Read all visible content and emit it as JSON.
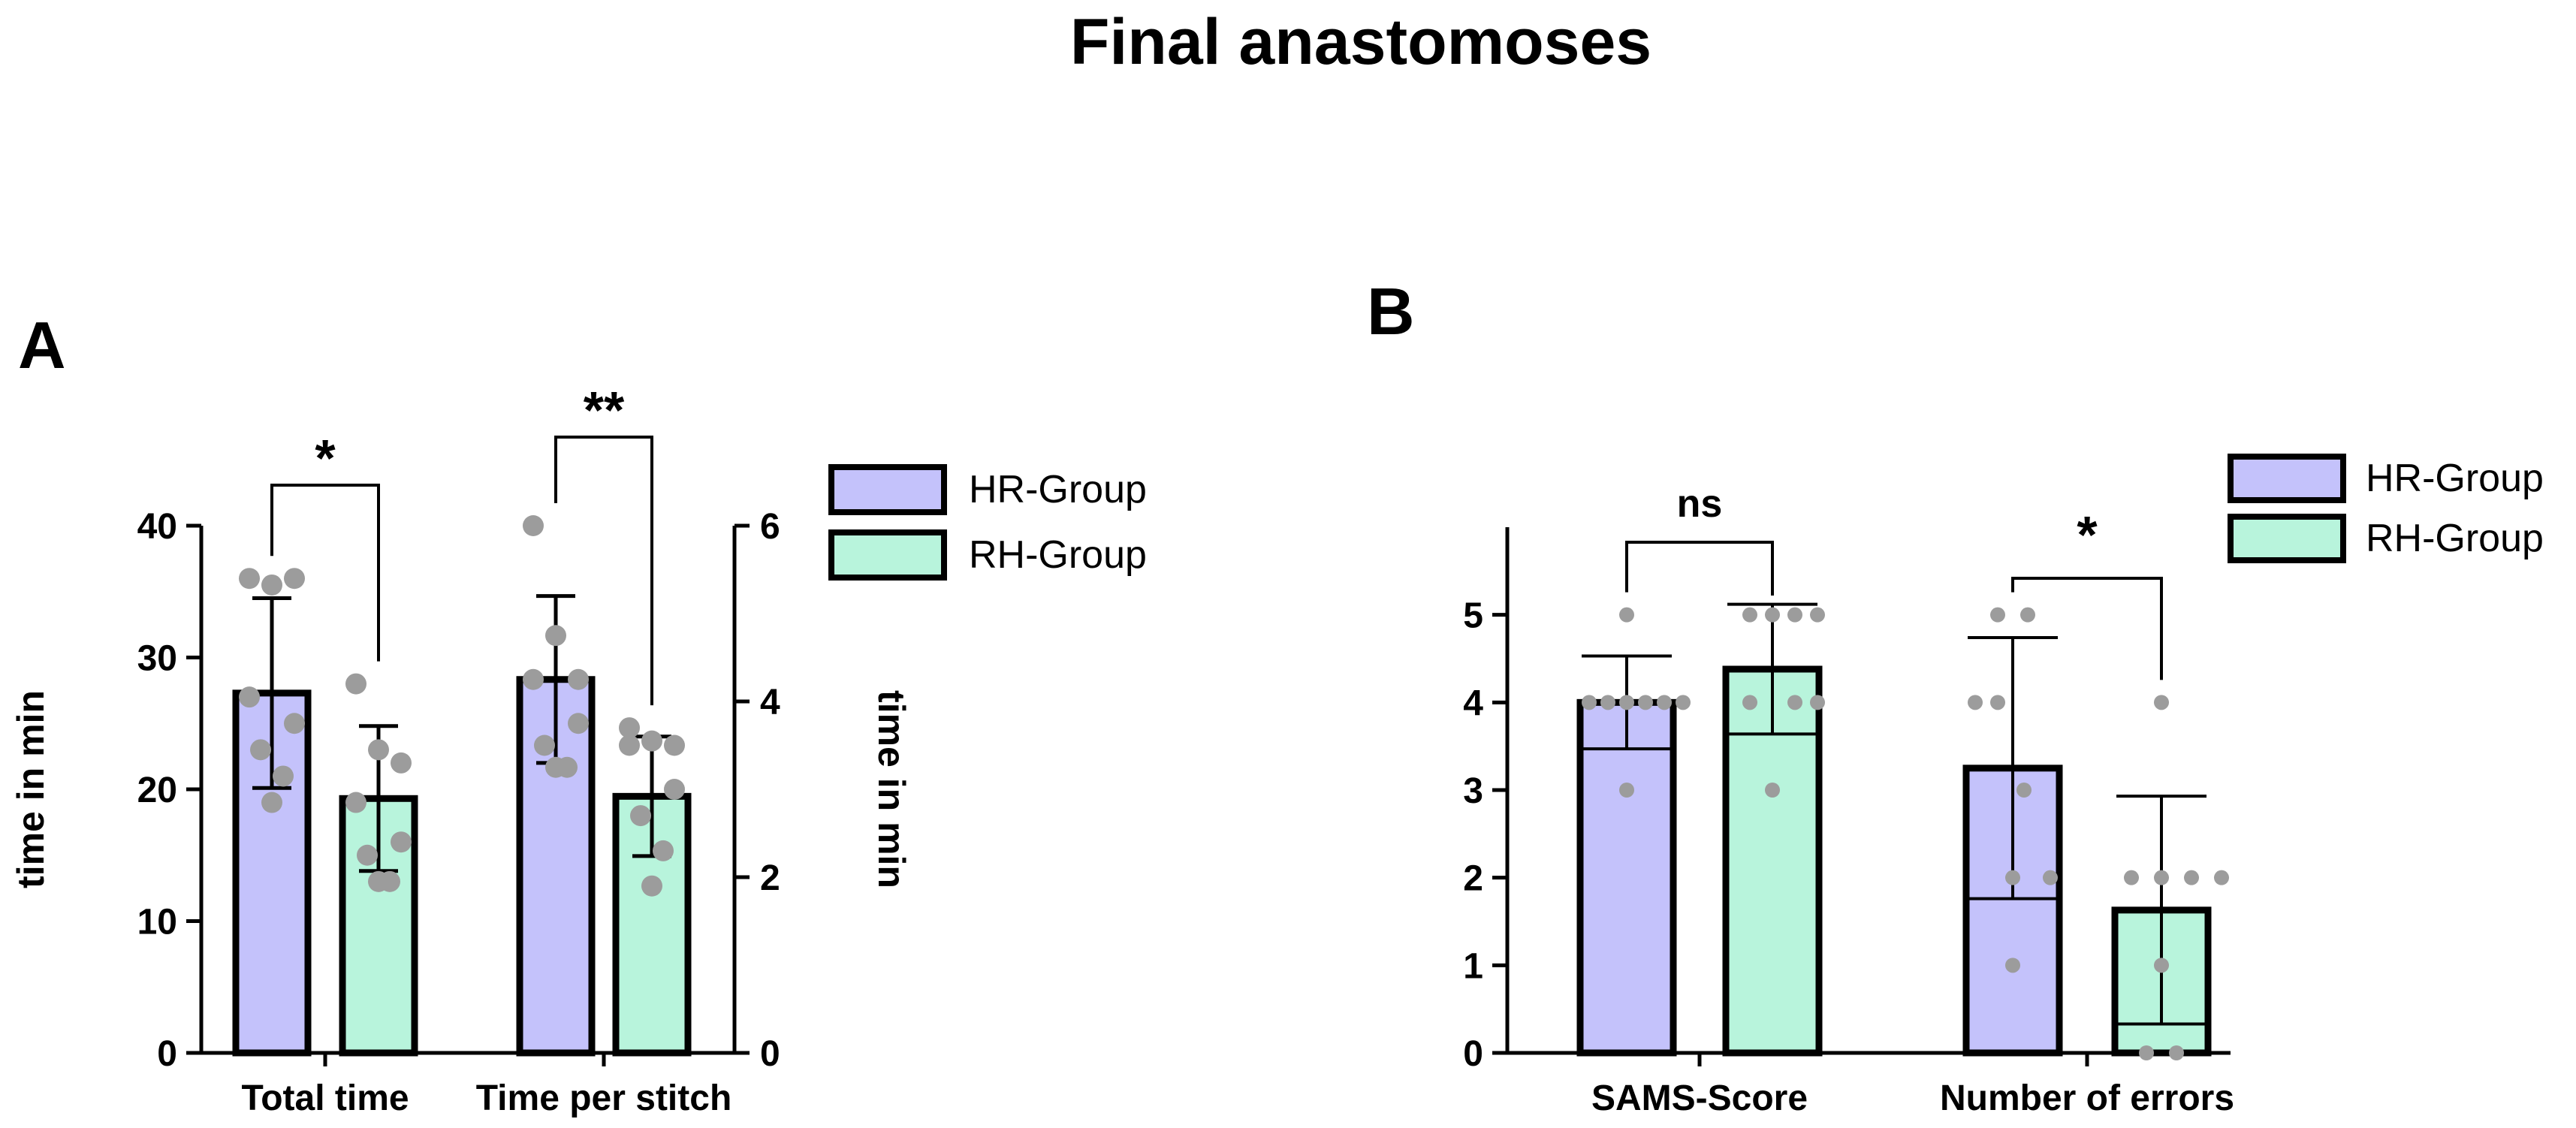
{
  "figure_title": "Final anastomoses",
  "colors": {
    "hr": "#c4c2fb",
    "rh": "#b8f4dc",
    "dot": "#9c9c9c",
    "ink": "#000000"
  },
  "chart_data": [
    {
      "panel": "A",
      "type": "bar",
      "categories": [
        "Total time",
        "Time per stitch"
      ],
      "left_axis": {
        "label": "time in min",
        "ylim": [
          0,
          40
        ],
        "ticks": [
          0,
          10,
          20,
          30,
          40
        ]
      },
      "right_axis": {
        "label": "time in min",
        "ylim": [
          0,
          6
        ],
        "ticks": [
          0,
          2,
          4,
          6
        ]
      },
      "legend": {
        "position": "top-right",
        "entries": [
          "HR-Group",
          "RH-Group"
        ]
      },
      "series": [
        {
          "name": "HR-Group",
          "axis_per_category": [
            "left",
            "right"
          ],
          "values": [
            27.3,
            4.25
          ],
          "sd": [
            7.2,
            0.95
          ],
          "points": [
            [
              36,
              35.5,
              36,
              27,
              25,
              23,
              21,
              19
            ],
            [
              6,
              4.75,
              4.25,
              4.25,
              3.75,
              3.5,
              3.25,
              3.25
            ]
          ]
        },
        {
          "name": "RH-Group",
          "axis_per_category": [
            "left",
            "right"
          ],
          "values": [
            19.3,
            2.92
          ],
          "sd": [
            5.5,
            0.68
          ],
          "points": [
            [
              28,
              23,
              22,
              19,
              16,
              15,
              13,
              13
            ],
            [
              3.7,
              3.55,
              3.5,
              3.5,
              3.0,
              2.7,
              2.3,
              1.9
            ]
          ]
        }
      ],
      "significance": [
        {
          "category": "Total time",
          "label": "*"
        },
        {
          "category": "Time per stitch",
          "label": "**"
        }
      ]
    },
    {
      "panel": "B",
      "type": "bar",
      "categories": [
        "SAMS-Score",
        "Number of errors"
      ],
      "axis": {
        "label": "",
        "ylim": [
          0,
          6
        ],
        "ticks": [
          0,
          1,
          2,
          3,
          4,
          5
        ]
      },
      "legend": {
        "position": "top-right",
        "entries": [
          "HR-Group",
          "RH-Group"
        ]
      },
      "series": [
        {
          "name": "HR-Group",
          "values": [
            4.0,
            3.25
          ],
          "sd": [
            0.53,
            1.49
          ],
          "points": [
            [
              5,
              4,
              4,
              4,
              4,
              4,
              4,
              3
            ],
            [
              5,
              5,
              4,
              4,
              3,
              2,
              2,
              1
            ]
          ]
        },
        {
          "name": "RH-Group",
          "values": [
            4.38,
            1.63
          ],
          "sd": [
            0.74,
            1.3
          ],
          "points": [
            [
              5,
              5,
              5,
              5,
              4,
              4,
              4,
              3
            ],
            [
              4,
              2,
              2,
              2,
              2,
              1,
              0,
              0
            ]
          ]
        }
      ],
      "significance": [
        {
          "category": "SAMS-Score",
          "label": "ns"
        },
        {
          "category": "Number of errors",
          "label": "*"
        }
      ]
    }
  ]
}
